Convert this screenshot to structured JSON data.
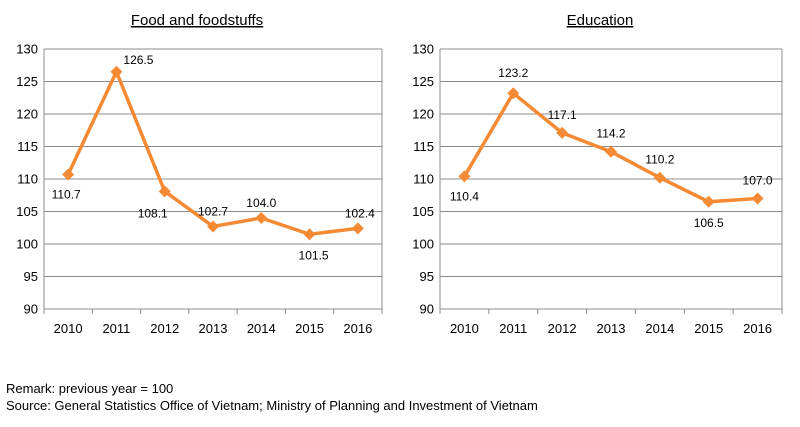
{
  "chart_data": [
    {
      "type": "line",
      "title": "Food and foodstuffs",
      "categories": [
        "2010",
        "2011",
        "2012",
        "2013",
        "2014",
        "2015",
        "2016"
      ],
      "series": [
        {
          "values": [
            110.7,
            126.5,
            108.1,
            102.7,
            104.0,
            101.5,
            102.4
          ]
        }
      ],
      "data_labels": [
        "110.7",
        "126.5",
        "108.1",
        "102.7",
        "104.0",
        "101.5",
        "102.4"
      ],
      "yticks": [
        90,
        95,
        100,
        105,
        110,
        115,
        120,
        125,
        130
      ],
      "ylim": [
        90,
        130
      ],
      "grid": true,
      "marker": "diamond",
      "color": "#F58A34"
    },
    {
      "type": "line",
      "title": "Education",
      "categories": [
        "2010",
        "2011",
        "2012",
        "2013",
        "2014",
        "2015",
        "2016"
      ],
      "series": [
        {
          "values": [
            110.4,
            123.2,
            117.1,
            114.2,
            110.2,
            106.5,
            107.0
          ]
        }
      ],
      "data_labels": [
        "110.4",
        "123.2",
        "117.1",
        "114.2",
        "110.2",
        "106.5",
        "107.0"
      ],
      "yticks": [
        90,
        95,
        100,
        105,
        110,
        115,
        120,
        125,
        130
      ],
      "ylim": [
        90,
        130
      ],
      "grid": true,
      "marker": "diamond",
      "color": "#F58A34"
    }
  ],
  "notes": {
    "remark": "Remark: previous year = 100",
    "source": "Source: General Statistics Office of Vietnam; Ministry of Planning and Investment of Vietnam"
  }
}
